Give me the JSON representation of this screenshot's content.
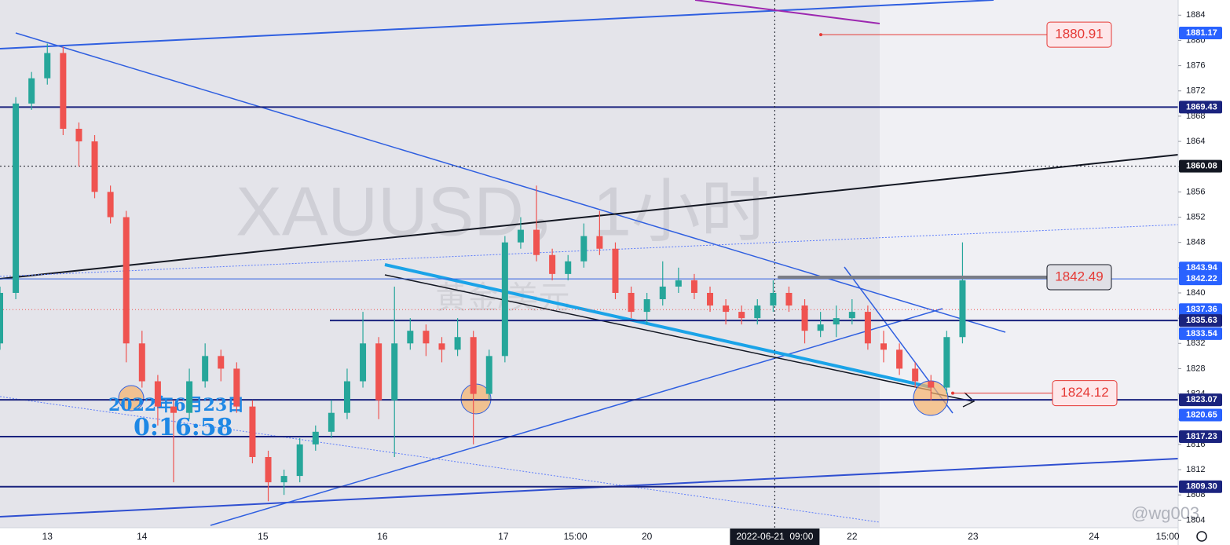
{
  "chart_data": {
    "type": "candlestick",
    "watermark": "XAUUSD，1小时",
    "watermark_sub": "黄金/美元",
    "timestamp_date": "2022年6月23日",
    "timestamp_time": "0:16:58",
    "handle": "@wg003",
    "up_color": "#26a69a",
    "down_color": "#ef5350",
    "x": [
      0,
      3,
      6,
      9,
      12,
      15,
      18,
      21,
      24,
      27,
      30,
      33,
      36,
      39,
      42,
      45,
      48,
      51,
      54,
      57,
      60,
      63,
      66,
      69,
      72,
      75,
      78,
      81,
      84,
      87,
      90,
      93,
      96,
      99,
      102,
      105,
      108,
      111,
      114,
      117,
      120,
      123,
      126,
      129,
      132,
      135,
      138,
      141,
      144,
      147,
      150,
      153,
      156,
      159,
      162,
      165,
      168,
      171,
      174,
      177,
      180,
      183
    ],
    "open": [
      1832,
      1840,
      1870,
      1874,
      1878,
      1866,
      1864,
      1856,
      1852,
      1832,
      1826,
      1822,
      1821,
      1826,
      1830,
      1828,
      1822,
      1814,
      1810,
      1811,
      1816,
      1818,
      1821,
      1826,
      1832,
      1823,
      1832,
      1834,
      1832,
      1831,
      1833,
      1824,
      1830,
      1848,
      1850,
      1846,
      1843,
      1845,
      1849,
      1847,
      1840,
      1837,
      1839,
      1841,
      1842,
      1840,
      1838,
      1837,
      1836,
      1838,
      1840,
      1838,
      1834,
      1835,
      1836,
      1837,
      1832,
      1831,
      1828,
      1826,
      1825,
      1833
    ],
    "high": [
      1841,
      1871,
      1875,
      1879.5,
      1879,
      1867,
      1865,
      1857,
      1853,
      1834,
      1827,
      1823,
      1828,
      1832,
      1831,
      1829,
      1823,
      1815,
      1812,
      1817,
      1819,
      1823,
      1828,
      1837,
      1833,
      1841,
      1836,
      1835,
      1833,
      1836,
      1834,
      1831,
      1849,
      1852,
      1857,
      1847,
      1846,
      1851,
      1853,
      1848,
      1841,
      1840,
      1845,
      1844,
      1843,
      1841,
      1839,
      1838,
      1839,
      1842,
      1841,
      1839,
      1837,
      1838,
      1839,
      1838,
      1834,
      1832,
      1829,
      1827,
      1834,
      1848
    ],
    "low": [
      1831,
      1839,
      1869,
      1873,
      1865,
      1860,
      1855,
      1851,
      1829,
      1825,
      1819,
      1810,
      1820,
      1825,
      1826,
      1821,
      1813,
      1807,
      1808,
      1810,
      1815,
      1817,
      1820,
      1825,
      1820,
      1814,
      1831,
      1830,
      1829,
      1830,
      1816,
      1823,
      1829,
      1847,
      1845,
      1842,
      1842,
      1844,
      1846,
      1839,
      1836,
      1835,
      1838,
      1840,
      1839,
      1837,
      1835,
      1835,
      1835,
      1837,
      1837,
      1832,
      1833,
      1833,
      1835,
      1831,
      1829,
      1827,
      1825,
      1823,
      1824,
      1832
    ],
    "close": [
      1840,
      1870,
      1874,
      1878,
      1866,
      1864,
      1856,
      1852,
      1832,
      1826,
      1822,
      1821,
      1826,
      1830,
      1828,
      1822,
      1814,
      1810,
      1811,
      1816,
      1818,
      1821,
      1826,
      1832,
      1823,
      1832,
      1834,
      1832,
      1831,
      1833,
      1824,
      1830,
      1848,
      1850,
      1846,
      1843,
      1845,
      1849,
      1847,
      1840,
      1837,
      1839,
      1841,
      1842,
      1840,
      1838,
      1837,
      1836,
      1838,
      1840,
      1838,
      1834,
      1835,
      1836,
      1837,
      1832,
      1831,
      1828,
      1826,
      1825,
      1833,
      1842
    ],
    "xlim": [
      0,
      224
    ],
    "ylim": [
      1802.8,
      1886.4
    ],
    "yticks": [
      1884,
      1880,
      1876,
      1872,
      1868,
      1864,
      1860,
      1856,
      1852,
      1848,
      1844,
      1840,
      1836,
      1832,
      1828,
      1824,
      1820,
      1816,
      1812,
      1808,
      1804
    ],
    "xticks": [
      {
        "value": 9,
        "label": "13"
      },
      {
        "value": 27,
        "label": "14"
      },
      {
        "value": 50,
        "label": "15"
      },
      {
        "value": 72.7,
        "label": "16"
      },
      {
        "value": 95.7,
        "label": "17"
      },
      {
        "value": 109.4,
        "label": "15:00"
      },
      {
        "value": 123,
        "label": "20"
      },
      {
        "value": 147.3,
        "label": "2022-06-21  09:00"
      },
      {
        "value": 162,
        "label": "22"
      },
      {
        "value": 185,
        "label": "23"
      },
      {
        "value": 208,
        "label": "24"
      },
      {
        "value": 222,
        "label": "15:00"
      }
    ],
    "crosshair": {
      "x": 147.3,
      "y": 1860.08
    },
    "current_price": 1837.36,
    "levels": [
      1869.43,
      1842.22,
      1835.63,
      1823.07,
      1817.23,
      {
        "value": 1809.3,
        "label": "1809.30"
      }
    ],
    "price_tags": [
      {
        "value": 1881.17,
        "color": "#2962ff"
      },
      {
        "value": 1869.43,
        "color": "#1a237e"
      },
      {
        "value": 1860.08,
        "color": "#131722"
      },
      {
        "value": 1843.94,
        "color": "#2962ff"
      },
      {
        "value": 1842.22,
        "color": "#2962ff"
      },
      {
        "value": 1837.36,
        "color": "#2962ff"
      },
      {
        "value": 1835.63,
        "color": "#1a237e"
      },
      {
        "value": 1833.54,
        "color": "#2962ff"
      },
      {
        "value": 1823.07,
        "color": "#1a237e"
      },
      {
        "value": 1820.65,
        "color": "#2962ff"
      },
      {
        "value": 1817.23,
        "color": "#1a237e"
      },
      {
        "value": {
          "value": 1809.3,
          "label": "1809.30"
        },
        "color": "#1a237e"
      }
    ],
    "callouts": [
      1880.91,
      1842.49,
      1824.12
    ]
  }
}
